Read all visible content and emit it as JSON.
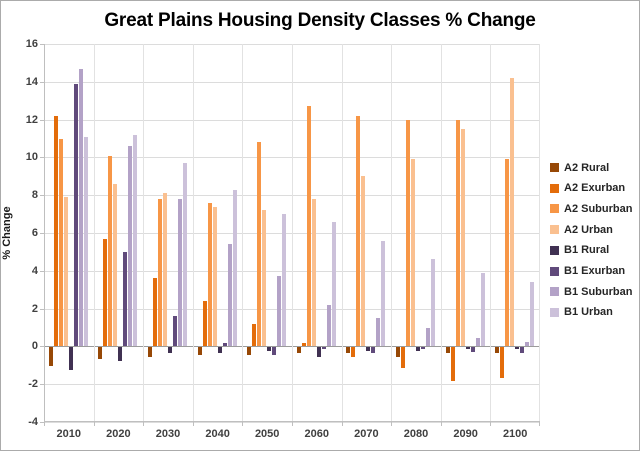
{
  "title": "Great Plains Housing Density Classes % Change",
  "y_axis": {
    "label": "% Change",
    "ticks": [
      16,
      14,
      12,
      10,
      8,
      6,
      4,
      2,
      0,
      -2,
      -4
    ],
    "min": -4,
    "max": 16
  },
  "x_axis": {
    "categories": [
      "2010",
      "2020",
      "2030",
      "2040",
      "2050",
      "2060",
      "2070",
      "2080",
      "2090",
      "2100"
    ]
  },
  "legend": {
    "position": "right",
    "entries": [
      "A2 Rural",
      "A2 Exurban",
      "A2 Suburban",
      "A2 Urban",
      "B1 Rural",
      "B1 Exurban",
      "B1 Suburban",
      "B1 Urban"
    ]
  },
  "chart_data": {
    "type": "bar",
    "title": "Great Plains Housing Density Classes % Change",
    "xlabel": "",
    "ylabel": "% Change",
    "ylim": [
      -4,
      16
    ],
    "grid": true,
    "legend_position": "right",
    "categories": [
      "2010",
      "2020",
      "2030",
      "2040",
      "2050",
      "2060",
      "2070",
      "2080",
      "2090",
      "2100"
    ],
    "series": [
      {
        "name": "A2 Rural",
        "color": "#974806",
        "values": [
          -1.0,
          -0.6,
          -0.5,
          -0.4,
          -0.4,
          -0.3,
          -0.3,
          -0.5,
          -0.3,
          -0.3
        ]
      },
      {
        "name": "A2 Exurban",
        "color": "#E36C0A",
        "values": [
          12.2,
          5.7,
          3.6,
          2.4,
          1.2,
          0.2,
          -0.5,
          -1.1,
          -1.8,
          -1.6
        ]
      },
      {
        "name": "A2 Suburban",
        "color": "#F79646",
        "values": [
          11.0,
          10.1,
          7.8,
          7.6,
          10.8,
          12.7,
          12.2,
          12.0,
          12.0,
          9.9
        ]
      },
      {
        "name": "A2 Urban",
        "color": "#FAC090",
        "values": [
          7.9,
          8.6,
          8.1,
          7.4,
          7.2,
          7.8,
          9.0,
          9.9,
          11.5,
          14.2
        ]
      },
      {
        "name": "B1 Rural",
        "color": "#403152",
        "values": [
          -1.2,
          -0.7,
          -0.3,
          -0.3,
          -0.2,
          -0.5,
          -0.2,
          -0.2,
          -0.1,
          -0.1
        ]
      },
      {
        "name": "B1 Exurban",
        "color": "#604A7B",
        "values": [
          13.9,
          5.0,
          1.6,
          0.2,
          -0.4,
          -0.1,
          -0.3,
          -0.1,
          -0.25,
          -0.3
        ]
      },
      {
        "name": "B1 Suburban",
        "color": "#B3A2C7",
        "values": [
          14.7,
          10.6,
          7.8,
          5.4,
          3.7,
          2.2,
          1.5,
          1.0,
          0.45,
          0.25
        ]
      },
      {
        "name": "B1 Urban",
        "color": "#CCC1DA",
        "values": [
          11.1,
          11.2,
          9.7,
          8.3,
          7.0,
          6.6,
          5.6,
          4.6,
          3.9,
          3.4
        ]
      }
    ]
  },
  "style": {
    "background": "#FFFFFF",
    "border_color": "#ABABAB",
    "gridline_color": "#DCDCDC",
    "zero_line_color": "#9B9B9B",
    "axis_line_color": "#BFBFBF",
    "tick_text_color": "#404040",
    "legend_text_color": "#262626",
    "title_color": "#000000"
  }
}
